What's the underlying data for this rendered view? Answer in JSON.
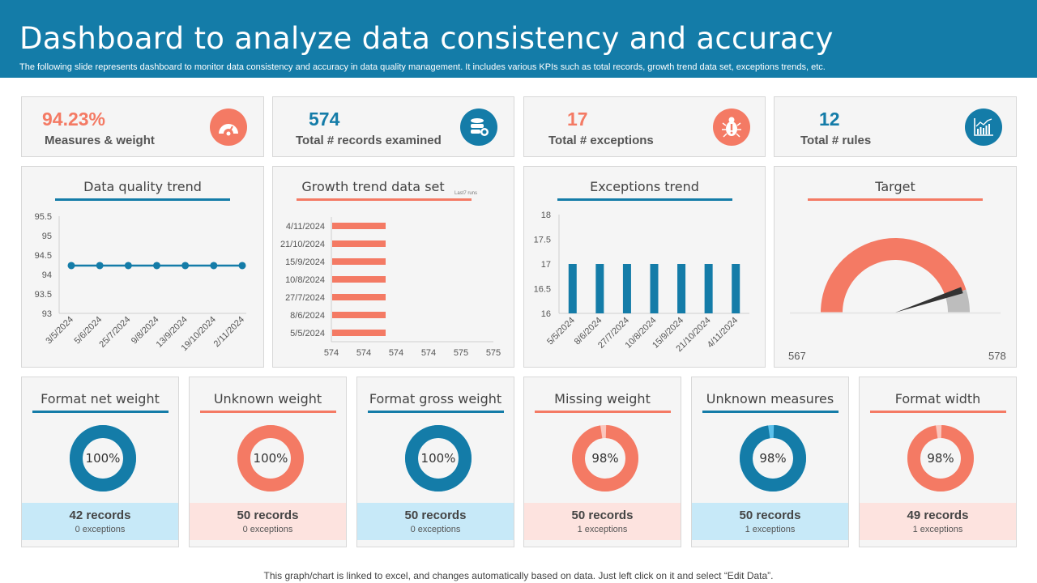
{
  "header": {
    "title": "Dashboard to analyze data consistency and accuracy",
    "subtitle": "The following slide represents dashboard to monitor data consistency and accuracy in data quality management. It includes various KPIs such as total records, growth trend data set, exceptions trends, etc."
  },
  "colors": {
    "blue": "#147ca8",
    "salmon": "#f47a64",
    "light_blue": "#c7e9f8",
    "light_salmon": "#fde3df",
    "gray": "#bdbdbd"
  },
  "kpis": [
    {
      "value": "94.23%",
      "label": "Measures & weight",
      "icon": "gauge-icon",
      "color": "#f47a64"
    },
    {
      "value": "574",
      "label": "Total # records examined",
      "icon": "database-icon",
      "color": "#147ca8"
    },
    {
      "value": "17",
      "label": "Total # exceptions",
      "icon": "bug-icon",
      "color": "#f47a64"
    },
    {
      "value": "12",
      "label": "Total # rules",
      "icon": "bar-chart-icon",
      "color": "#147ca8"
    }
  ],
  "chart_data": [
    {
      "type": "line",
      "title": "Data quality trend",
      "categories": [
        "3/5/2024",
        "5/6/2024",
        "25/7/2024",
        "9/8/2024",
        "13/9/2024",
        "19/10/2024",
        "2/11/2024"
      ],
      "values": [
        94.23,
        94.23,
        94.23,
        94.23,
        94.23,
        94.23,
        94.23
      ],
      "ylim": [
        93,
        95.5
      ],
      "yticks": [
        "93",
        "93.5",
        "94",
        "94.5",
        "95",
        "95.5"
      ],
      "xlabel": "",
      "ylabel": ""
    },
    {
      "type": "bar",
      "orientation": "horizontal",
      "title": "Growth trend data set",
      "annotation": "Last7 runs",
      "categories": [
        "5/5/2024",
        "8/6/2024",
        "27/7/2024",
        "10/8/2024",
        "15/9/2024",
        "21/10/2024",
        "4/11/2024"
      ],
      "values": [
        574,
        574,
        574,
        574,
        574,
        574,
        574
      ],
      "xticks": [
        "574",
        "574",
        "574",
        "574",
        "575",
        "575"
      ],
      "xlim_fraction_of_bar": 0.33,
      "xlabel": "",
      "ylabel": ""
    },
    {
      "type": "bar",
      "title": "Exceptions trend",
      "categories": [
        "5/5/2024",
        "8/6/2024",
        "27/7/2024",
        "10/8/2024",
        "15/9/2024",
        "21/10/2024",
        "4/11/2024"
      ],
      "values": [
        17,
        17,
        17,
        17,
        17,
        17,
        17
      ],
      "ylim": [
        16,
        18
      ],
      "yticks": [
        "16",
        "16.5",
        "17",
        "17.5",
        "18"
      ],
      "xlabel": "",
      "ylabel": ""
    },
    {
      "type": "gauge",
      "title": "Target",
      "min": 567,
      "max": 578,
      "min_label": "567",
      "max_label": "578",
      "value": 574,
      "target": 576.9
    }
  ],
  "metrics": [
    {
      "title": "Format net weight",
      "percent": 100,
      "percent_label": "100%",
      "records": "42 records",
      "exceptions": "0 exceptions",
      "theme": "blue"
    },
    {
      "title": "Unknown weight",
      "percent": 100,
      "percent_label": "100%",
      "records": "50 records",
      "exceptions": "0 exceptions",
      "theme": "salmon"
    },
    {
      "title": "Format gross weight",
      "percent": 100,
      "percent_label": "100%",
      "records": "50 records",
      "exceptions": "0 exceptions",
      "theme": "blue"
    },
    {
      "title": "Missing weight",
      "percent": 98,
      "percent_label": "98%",
      "records": "50 records",
      "exceptions": "1 exceptions",
      "theme": "salmon"
    },
    {
      "title": "Unknown measures",
      "percent": 98,
      "percent_label": "98%",
      "records": "50 records",
      "exceptions": "1 exceptions",
      "theme": "blue"
    },
    {
      "title": "Format width",
      "percent": 98,
      "percent_label": "98%",
      "records": "49 records",
      "exceptions": "1 exceptions",
      "theme": "salmon"
    }
  ],
  "footer": "This graph/chart is linked to excel, and changes automatically based on data. Just left click on it and select “Edit Data”."
}
